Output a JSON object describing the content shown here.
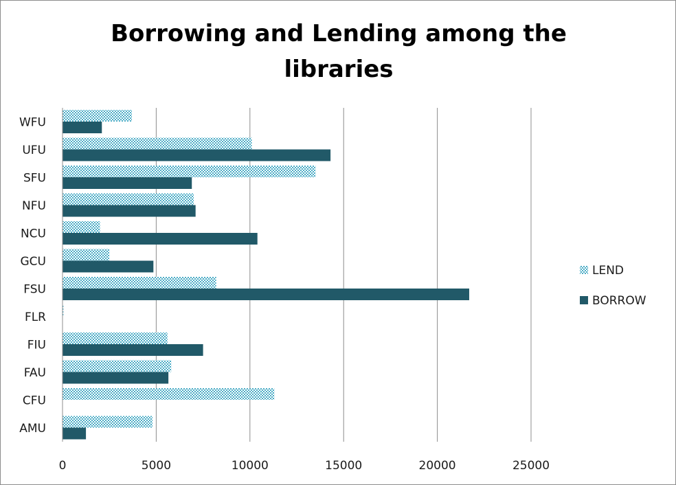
{
  "chart_data": {
    "type": "bar",
    "orientation": "horizontal",
    "title": "Borrowing and Lending among the libraries",
    "xlabel": "",
    "ylabel": "",
    "categories": [
      "WFU",
      "UFU",
      "SFU",
      "NFU",
      "NCU",
      "GCU",
      "FSU",
      "FLR",
      "FIU",
      "FAU",
      "CFU",
      "AMU"
    ],
    "xlim": [
      0,
      25000
    ],
    "xticks": [
      "0",
      "5000",
      "10000",
      "15000",
      "20000",
      "25000"
    ],
    "grid": true,
    "legend_position": "right",
    "series": [
      {
        "name": "LEND",
        "color": "#4bacc6",
        "pattern": "dotted",
        "values": [
          3700,
          10100,
          13500,
          7000,
          2000,
          2500,
          8200,
          50,
          5600,
          5800,
          11300,
          4800
        ]
      },
      {
        "name": "BORROW",
        "color": "#215968",
        "pattern": "solid",
        "values": [
          2100,
          14300,
          6900,
          7100,
          10400,
          4850,
          21700,
          0,
          7500,
          5650,
          0,
          1250
        ]
      }
    ]
  }
}
